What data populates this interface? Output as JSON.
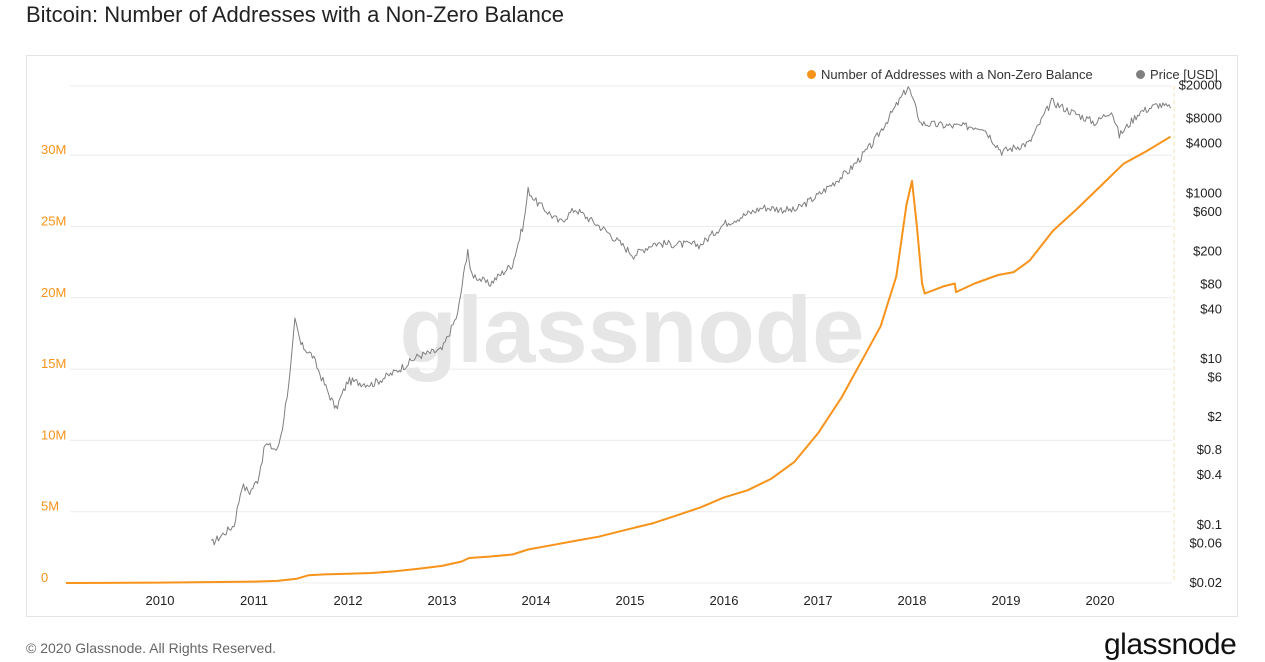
{
  "title": "Bitcoin: Number of Addresses with a Non-Zero Balance",
  "footer": "© 2020 Glassnode. All Rights Reserved.",
  "brand": "glassnode",
  "watermark": "glassnode",
  "colors": {
    "addresses": "#f7931a",
    "price": "#7f7f7f",
    "left_axis": "#f7931a",
    "right_axis": "#222222",
    "grid": "#ececec"
  },
  "chart_data": {
    "type": "line",
    "title": "Bitcoin: Number of Addresses with a Non-Zero Balance",
    "x_ticks": [
      "2010",
      "2011",
      "2012",
      "2013",
      "2014",
      "2015",
      "2016",
      "2017",
      "2018",
      "2019",
      "2020"
    ],
    "left_axis": {
      "ticks": [
        0,
        5000000,
        10000000,
        15000000,
        20000000,
        25000000,
        30000000
      ],
      "tick_labels": [
        "0",
        "5M",
        "10M",
        "15M",
        "20M",
        "25M",
        "30M"
      ],
      "range": [
        0,
        35000000
      ]
    },
    "right_axis": {
      "scale": "log",
      "ticks": [
        0.02,
        0.06,
        0.1,
        0.4,
        0.8,
        2,
        6,
        10,
        40,
        80,
        200,
        600,
        1000,
        4000,
        8000,
        20000
      ],
      "tick_labels": [
        "$0.02",
        "$0.06",
        "$0.1",
        "$0.4",
        "$0.8",
        "$2",
        "$6",
        "$10",
        "$40",
        "$80",
        "$200",
        "$600",
        "$1000",
        "$4000",
        "$8000",
        "$20000"
      ]
    },
    "grid": true,
    "legend_position": "top-right",
    "series": [
      {
        "name": "Number of Addresses with a Non-Zero Balance",
        "axis": "left",
        "points": [
          [
            "2009-01-01",
            0
          ],
          [
            "2009-06-01",
            10000
          ],
          [
            "2010-01-01",
            30000
          ],
          [
            "2010-07-01",
            60000
          ],
          [
            "2011-01-01",
            100000
          ],
          [
            "2011-04-01",
            150000
          ],
          [
            "2011-06-15",
            300000
          ],
          [
            "2011-08-01",
            550000
          ],
          [
            "2011-10-01",
            600000
          ],
          [
            "2012-01-01",
            650000
          ],
          [
            "2012-04-01",
            700000
          ],
          [
            "2012-07-01",
            820000
          ],
          [
            "2012-10-01",
            1000000
          ],
          [
            "2013-01-01",
            1200000
          ],
          [
            "2013-03-15",
            1500000
          ],
          [
            "2013-04-15",
            1750000
          ],
          [
            "2013-07-01",
            1850000
          ],
          [
            "2013-10-01",
            2000000
          ],
          [
            "2013-12-01",
            2350000
          ],
          [
            "2014-03-01",
            2650000
          ],
          [
            "2014-06-01",
            2950000
          ],
          [
            "2014-09-01",
            3250000
          ],
          [
            "2015-01-01",
            3800000
          ],
          [
            "2015-04-01",
            4200000
          ],
          [
            "2015-07-01",
            4750000
          ],
          [
            "2015-10-01",
            5300000
          ],
          [
            "2016-01-01",
            6000000
          ],
          [
            "2016-04-01",
            6500000
          ],
          [
            "2016-07-01",
            7300000
          ],
          [
            "2016-10-01",
            8500000
          ],
          [
            "2017-01-01",
            10500000
          ],
          [
            "2017-04-01",
            13000000
          ],
          [
            "2017-07-01",
            16000000
          ],
          [
            "2017-09-01",
            18000000
          ],
          [
            "2017-11-01",
            21500000
          ],
          [
            "2017-12-10",
            26500000
          ],
          [
            "2018-01-01",
            28200000
          ],
          [
            "2018-01-20",
            25000000
          ],
          [
            "2018-02-10",
            21000000
          ],
          [
            "2018-02-20",
            20300000
          ],
          [
            "2018-05-01",
            20800000
          ],
          [
            "2018-06-15",
            21000000
          ],
          [
            "2018-06-20",
            20400000
          ],
          [
            "2018-09-01",
            21000000
          ],
          [
            "2018-12-01",
            21600000
          ],
          [
            "2019-02-01",
            21800000
          ],
          [
            "2019-04-01",
            22600000
          ],
          [
            "2019-07-01",
            24700000
          ],
          [
            "2019-10-01",
            26200000
          ],
          [
            "2020-01-01",
            27800000
          ],
          [
            "2020-04-01",
            29400000
          ],
          [
            "2020-07-01",
            30300000
          ],
          [
            "2020-10-01",
            31300000
          ]
        ]
      },
      {
        "name": "Price [USD]",
        "axis": "right",
        "points": [
          [
            "2010-07-18",
            0.06
          ],
          [
            "2010-08-15",
            0.07
          ],
          [
            "2010-10-15",
            0.1
          ],
          [
            "2010-11-15",
            0.3
          ],
          [
            "2010-12-15",
            0.25
          ],
          [
            "2011-01-15",
            0.35
          ],
          [
            "2011-02-15",
            0.95
          ],
          [
            "2011-04-01",
            0.8
          ],
          [
            "2011-04-20",
            1.5
          ],
          [
            "2011-05-20",
            7
          ],
          [
            "2011-06-08",
            29
          ],
          [
            "2011-07-01",
            15
          ],
          [
            "2011-08-15",
            11
          ],
          [
            "2011-10-01",
            5
          ],
          [
            "2011-11-15",
            2.5
          ],
          [
            "2012-01-01",
            5.5
          ],
          [
            "2012-04-01",
            5
          ],
          [
            "2012-07-01",
            7
          ],
          [
            "2012-10-01",
            11
          ],
          [
            "2013-01-01",
            13
          ],
          [
            "2013-03-01",
            35
          ],
          [
            "2013-04-10",
            220
          ],
          [
            "2013-04-20",
            110
          ],
          [
            "2013-07-01",
            80
          ],
          [
            "2013-10-01",
            140
          ],
          [
            "2013-11-15",
            450
          ],
          [
            "2013-12-01",
            1100
          ],
          [
            "2014-01-01",
            800
          ],
          [
            "2014-04-01",
            450
          ],
          [
            "2014-06-01",
            650
          ],
          [
            "2014-10-01",
            350
          ],
          [
            "2015-01-15",
            180
          ],
          [
            "2015-04-01",
            250
          ],
          [
            "2015-10-01",
            240
          ],
          [
            "2016-01-01",
            430
          ],
          [
            "2016-06-01",
            680
          ],
          [
            "2016-10-01",
            620
          ],
          [
            "2017-01-01",
            950
          ],
          [
            "2017-05-01",
            1900
          ],
          [
            "2017-08-01",
            4000
          ],
          [
            "2017-12-17",
            19500
          ],
          [
            "2018-02-05",
            7000
          ],
          [
            "2018-06-01",
            6500
          ],
          [
            "2018-10-01",
            6400
          ],
          [
            "2018-12-15",
            3200
          ],
          [
            "2019-04-01",
            4100
          ],
          [
            "2019-06-26",
            12900
          ],
          [
            "2019-09-01",
            10000
          ],
          [
            "2019-12-15",
            7100
          ],
          [
            "2020-02-15",
            10200
          ],
          [
            "2020-03-15",
            5000
          ],
          [
            "2020-06-01",
            9500
          ],
          [
            "2020-08-15",
            11800
          ],
          [
            "2020-10-01",
            10700
          ]
        ]
      }
    ]
  }
}
